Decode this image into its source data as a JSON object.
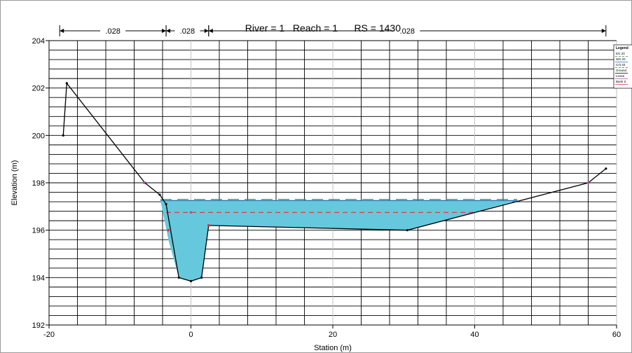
{
  "chart_data": {
    "type": "line",
    "title_parts": [
      "River = 1",
      "Reach = 1",
      "RS = 1430"
    ],
    "xlabel": "Station (m)",
    "ylabel": "Elevation (m)",
    "xlim": [
      -20,
      60
    ],
    "ylim": [
      192,
      204
    ],
    "x_ticks": [
      -20,
      0,
      20,
      40,
      60
    ],
    "y_ticks": [
      192,
      194,
      196,
      198,
      200,
      202,
      204
    ],
    "grid": true,
    "manning_n": [
      {
        "label": ".028",
        "from": -18.5,
        "to": -3.5
      },
      {
        "label": ".028",
        "from": -3.5,
        "to": 2.5
      },
      {
        "label": ".028",
        "from": 2.5,
        "to": 58.5
      }
    ],
    "ground": {
      "x": [
        -18,
        -17.5,
        -6.5,
        -4.4,
        -3.5,
        -1.7,
        0,
        1.5,
        2.5,
        30.5,
        56,
        58.5
      ],
      "y": [
        200,
        202.2,
        198,
        197.5,
        197.1,
        194,
        193.85,
        194,
        196.2,
        196,
        198,
        198.6
      ]
    },
    "ws_elevation": 197.25,
    "eg_elevation": 197.3,
    "crit_elevation": 196.75,
    "water_polygon": {
      "x": [
        -4.3,
        -3.1,
        -1.7,
        0,
        1.5,
        2.5,
        30.5,
        46
      ],
      "y": [
        197.25,
        195.5,
        194.0,
        193.85,
        194.0,
        196.2,
        196.0,
        197.25
      ]
    },
    "bank_stations": {
      "x": [
        -3.2,
        2.5
      ],
      "y": [
        196.0,
        196.2
      ]
    },
    "levee_points": {
      "x": [
        -6.6,
        0,
        56
      ],
      "y": [
        198.0,
        196.75,
        198.0
      ]
    },
    "legend": {
      "title": "Legend",
      "entries": [
        "EG 20",
        "WS 20",
        "Crit 20",
        "Ground",
        "Levee",
        "Bank S"
      ]
    },
    "colors": {
      "eg": "#2e8b57",
      "ws": "#4db8d6",
      "crit": "#e03030",
      "ground": "#000000",
      "water": "#66c8dc",
      "bank": "#e03030",
      "levee": "#c040c0",
      "grid": "#000000"
    }
  }
}
